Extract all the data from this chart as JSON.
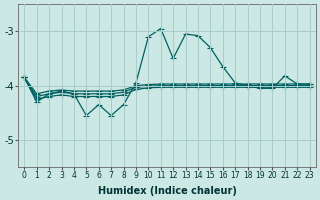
{
  "xlabel": "Humidex (Indice chaleur)",
  "xlim": [
    -0.5,
    23.5
  ],
  "ylim": [
    -5.5,
    -2.5
  ],
  "yticks": [
    -5,
    -4,
    -3
  ],
  "xticks": [
    0,
    1,
    2,
    3,
    4,
    5,
    6,
    7,
    8,
    9,
    10,
    11,
    12,
    13,
    14,
    15,
    16,
    17,
    18,
    19,
    20,
    21,
    22,
    23
  ],
  "bg_color": "#cce8e4",
  "grid_color": "#aacccc",
  "line_color": "#006060",
  "y_main": [
    -3.85,
    -4.3,
    -4.15,
    -4.1,
    -4.15,
    -4.55,
    -4.35,
    -4.55,
    -4.35,
    -3.95,
    -3.1,
    -2.95,
    -3.5,
    -3.05,
    -3.08,
    -3.3,
    -3.65,
    -3.95,
    -4.0,
    -4.05,
    -4.05,
    -3.82,
    -3.97,
    -3.97
  ],
  "y_smooth1": [
    -3.85,
    -4.15,
    -4.1,
    -4.08,
    -4.1,
    -4.1,
    -4.1,
    -4.1,
    -4.08,
    -4.0,
    -3.98,
    -3.97,
    -3.97,
    -3.97,
    -3.97,
    -3.97,
    -3.97,
    -3.97,
    -3.97,
    -3.97,
    -3.97,
    -3.97,
    -3.97,
    -3.97
  ],
  "y_smooth2": [
    -3.85,
    -4.2,
    -4.15,
    -4.12,
    -4.15,
    -4.15,
    -4.15,
    -4.15,
    -4.12,
    -4.03,
    -4.01,
    -4.0,
    -4.0,
    -4.0,
    -4.0,
    -4.0,
    -4.0,
    -4.0,
    -4.0,
    -4.0,
    -4.0,
    -4.0,
    -4.0,
    -4.0
  ],
  "y_smooth3": [
    -3.85,
    -4.25,
    -4.2,
    -4.17,
    -4.2,
    -4.2,
    -4.2,
    -4.2,
    -4.17,
    -4.07,
    -4.04,
    -4.03,
    -4.03,
    -4.03,
    -4.03,
    -4.03,
    -4.03,
    -4.03,
    -4.03,
    -4.03,
    -4.03,
    -4.03,
    -4.03,
    -4.03
  ],
  "marker": "+",
  "markersize": 4,
  "linewidth": 0.9
}
